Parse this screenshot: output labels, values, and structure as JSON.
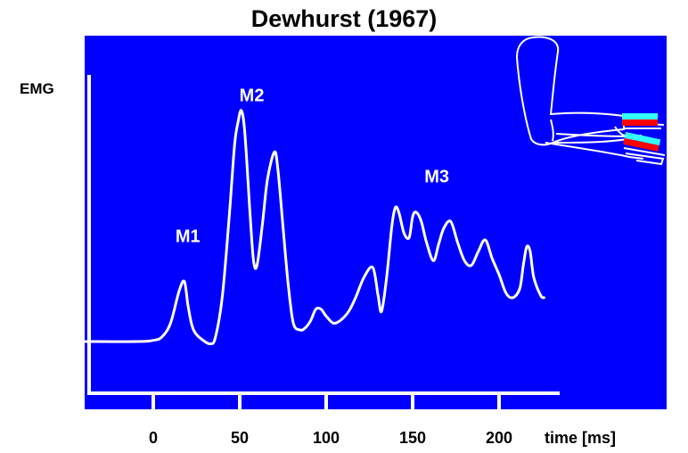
{
  "chart_data": {
    "type": "line",
    "title": "Dewhurst (1967)",
    "ylabel": "EMG",
    "xlabel": "time [ms]",
    "xticks": [
      0,
      50,
      100,
      150,
      200
    ],
    "xlim": [
      -40,
      235
    ],
    "ylim": [
      0,
      1
    ],
    "grid": false,
    "annotations": [
      {
        "text": "M1",
        "x": 20,
        "y": 0.43
      },
      {
        "text": "M2",
        "x": 57,
        "y": 1.04
      },
      {
        "text": "M3",
        "x": 164,
        "y": 0.69
      }
    ],
    "series": [
      {
        "x": [
          -40,
          -10,
          0,
          5,
          10,
          15,
          18,
          20,
          22,
          24,
          28,
          33,
          36,
          40,
          44,
          47,
          49,
          51,
          53,
          56,
          58,
          60,
          63,
          66,
          70,
          72,
          75,
          78,
          81,
          85,
          88,
          91,
          94,
          97,
          100,
          104,
          108,
          113,
          117,
          122,
          127,
          130,
          132,
          135,
          138,
          140,
          142,
          145,
          148,
          150,
          152,
          155,
          158,
          162,
          165,
          168,
          172,
          176,
          180,
          184,
          188,
          192,
          196,
          200,
          204,
          208,
          212,
          214,
          216,
          218,
          220,
          224,
          226
        ],
        "y": [
          0.0,
          0.0,
          0.005,
          0.02,
          0.08,
          0.22,
          0.26,
          0.16,
          0.08,
          0.04,
          0.01,
          -0.01,
          0.02,
          0.2,
          0.55,
          0.85,
          0.95,
          1.0,
          0.9,
          0.55,
          0.35,
          0.33,
          0.5,
          0.7,
          0.82,
          0.75,
          0.5,
          0.25,
          0.08,
          0.05,
          0.06,
          0.09,
          0.14,
          0.14,
          0.11,
          0.08,
          0.09,
          0.13,
          0.19,
          0.28,
          0.32,
          0.2,
          0.13,
          0.28,
          0.5,
          0.58,
          0.56,
          0.47,
          0.45,
          0.54,
          0.56,
          0.52,
          0.43,
          0.35,
          0.42,
          0.49,
          0.52,
          0.43,
          0.35,
          0.33,
          0.39,
          0.44,
          0.36,
          0.29,
          0.21,
          0.19,
          0.23,
          0.33,
          0.41,
          0.39,
          0.28,
          0.2,
          0.19
        ]
      }
    ],
    "colors": {
      "background": "#0000ff",
      "line": "#ffffff",
      "marker_top": "#33ffff",
      "marker_bottom": "#ff0000"
    }
  }
}
